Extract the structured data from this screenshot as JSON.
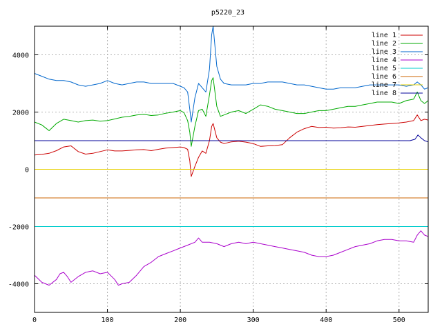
{
  "chart_data": {
    "type": "line",
    "title": "p5220_23",
    "xlabel": "",
    "ylabel": "",
    "xlim": [
      0,
      540
    ],
    "ylim": [
      -5000,
      5000
    ],
    "x_ticks": [
      0,
      100,
      200,
      300,
      400,
      500
    ],
    "y_ticks": [
      -4000,
      -2000,
      0,
      2000,
      4000
    ],
    "grid": true,
    "legend_position": "top-right",
    "series": [
      {
        "name": "line 1",
        "color": "#cc0000",
        "x": [
          0,
          10,
          20,
          30,
          40,
          50,
          60,
          70,
          80,
          90,
          100,
          110,
          120,
          130,
          140,
          150,
          160,
          170,
          180,
          190,
          200,
          205,
          210,
          213,
          215,
          220,
          225,
          230,
          235,
          240,
          243,
          245,
          250,
          255,
          260,
          270,
          280,
          290,
          300,
          310,
          320,
          330,
          340,
          350,
          360,
          370,
          380,
          390,
          400,
          410,
          420,
          430,
          440,
          450,
          460,
          470,
          480,
          490,
          500,
          510,
          520,
          525,
          530,
          535,
          540
        ],
        "values": [
          500,
          520,
          560,
          650,
          780,
          820,
          620,
          530,
          560,
          620,
          680,
          640,
          640,
          660,
          680,
          690,
          650,
          700,
          740,
          760,
          780,
          760,
          700,
          300,
          -250,
          100,
          420,
          640,
          560,
          1000,
          1500,
          1600,
          1100,
          950,
          900,
          960,
          980,
          950,
          900,
          800,
          820,
          830,
          860,
          1100,
          1300,
          1420,
          1500,
          1460,
          1470,
          1440,
          1450,
          1480,
          1470,
          1500,
          1530,
          1560,
          1580,
          1600,
          1620,
          1650,
          1700,
          1900,
          1700,
          1750,
          1720
        ]
      },
      {
        "name": "line 2",
        "color": "#00aa00",
        "x": [
          0,
          10,
          15,
          20,
          30,
          40,
          50,
          60,
          70,
          80,
          90,
          100,
          110,
          120,
          130,
          140,
          150,
          160,
          170,
          180,
          190,
          200,
          205,
          210,
          213,
          215,
          220,
          225,
          230,
          235,
          240,
          243,
          245,
          250,
          255,
          260,
          270,
          280,
          290,
          300,
          310,
          320,
          330,
          340,
          350,
          360,
          370,
          380,
          390,
          400,
          410,
          420,
          430,
          440,
          450,
          460,
          470,
          480,
          490,
          500,
          510,
          520,
          525,
          530,
          535,
          540
        ],
        "values": [
          1650,
          1550,
          1450,
          1350,
          1600,
          1750,
          1700,
          1650,
          1700,
          1720,
          1680,
          1700,
          1760,
          1820,
          1850,
          1900,
          1920,
          1880,
          1900,
          1960,
          2000,
          2050,
          1980,
          1700,
          1300,
          800,
          1500,
          2050,
          2100,
          1850,
          2600,
          3100,
          3200,
          2200,
          1850,
          1900,
          2000,
          2050,
          1950,
          2100,
          2250,
          2200,
          2100,
          2050,
          2000,
          1950,
          1950,
          2000,
          2050,
          2050,
          2100,
          2150,
          2200,
          2200,
          2250,
          2300,
          2350,
          2350,
          2350,
          2300,
          2400,
          2450,
          2700,
          2400,
          2300,
          2400
        ]
      },
      {
        "name": "line 3",
        "color": "#0066cc",
        "x": [
          0,
          10,
          20,
          30,
          40,
          50,
          60,
          70,
          80,
          90,
          100,
          110,
          120,
          130,
          140,
          150,
          160,
          170,
          180,
          190,
          200,
          205,
          210,
          213,
          215,
          220,
          225,
          230,
          235,
          240,
          243,
          245,
          250,
          255,
          260,
          270,
          280,
          290,
          300,
          310,
          320,
          330,
          340,
          350,
          360,
          370,
          380,
          390,
          400,
          410,
          420,
          430,
          440,
          450,
          460,
          470,
          480,
          490,
          500,
          510,
          520,
          525,
          530,
          535,
          540
        ],
        "values": [
          3350,
          3250,
          3150,
          3100,
          3100,
          3050,
          2950,
          2900,
          2950,
          3000,
          3100,
          3000,
          2950,
          3000,
          3050,
          3050,
          3000,
          3000,
          3000,
          3000,
          2900,
          2850,
          2700,
          2100,
          1650,
          2500,
          3000,
          2850,
          2700,
          3500,
          4700,
          5000,
          3600,
          3150,
          3000,
          2950,
          2950,
          2950,
          3000,
          3000,
          3050,
          3050,
          3050,
          3000,
          2950,
          2950,
          2900,
          2850,
          2800,
          2800,
          2850,
          2850,
          2850,
          2900,
          2950,
          2950,
          2950,
          2950,
          2950,
          2900,
          2950,
          3050,
          2950,
          2800,
          2850
        ]
      },
      {
        "name": "line 4",
        "color": "#aa00cc",
        "x": [
          0,
          10,
          20,
          30,
          35,
          40,
          45,
          50,
          60,
          70,
          80,
          90,
          100,
          110,
          115,
          120,
          130,
          140,
          150,
          160,
          170,
          180,
          190,
          200,
          210,
          220,
          225,
          230,
          240,
          250,
          260,
          270,
          280,
          290,
          300,
          310,
          320,
          330,
          340,
          350,
          360,
          370,
          380,
          390,
          400,
          410,
          420,
          430,
          440,
          450,
          460,
          470,
          480,
          490,
          500,
          510,
          520,
          525,
          530,
          535,
          540
        ],
        "values": [
          -3700,
          -3950,
          -4050,
          -3850,
          -3650,
          -3600,
          -3750,
          -3950,
          -3750,
          -3600,
          -3550,
          -3650,
          -3600,
          -3850,
          -4050,
          -4000,
          -3950,
          -3700,
          -3400,
          -3250,
          -3050,
          -2950,
          -2850,
          -2750,
          -2650,
          -2550,
          -2400,
          -2550,
          -2550,
          -2600,
          -2700,
          -2600,
          -2550,
          -2600,
          -2550,
          -2600,
          -2650,
          -2700,
          -2750,
          -2800,
          -2850,
          -2900,
          -3000,
          -3050,
          -3050,
          -3000,
          -2900,
          -2800,
          -2700,
          -2650,
          -2600,
          -2500,
          -2450,
          -2450,
          -2500,
          -2500,
          -2550,
          -2300,
          -2150,
          -2300,
          -2350
        ]
      },
      {
        "name": "line 5",
        "color": "#00cccc",
        "x": [
          0,
          540
        ],
        "values": [
          -2000,
          -2000
        ]
      },
      {
        "name": "line 6",
        "color": "#cc6600",
        "x": [
          0,
          540
        ],
        "values": [
          -1000,
          -1000
        ]
      },
      {
        "name": "line 7",
        "color": "#e6d000",
        "x": [
          0,
          540
        ],
        "values": [
          0,
          0
        ]
      },
      {
        "name": "line 8",
        "color": "#000099",
        "x": [
          0,
          515,
          522,
          526,
          530,
          535,
          540
        ],
        "values": [
          1000,
          1000,
          1050,
          1200,
          1100,
          1000,
          960
        ]
      }
    ]
  }
}
